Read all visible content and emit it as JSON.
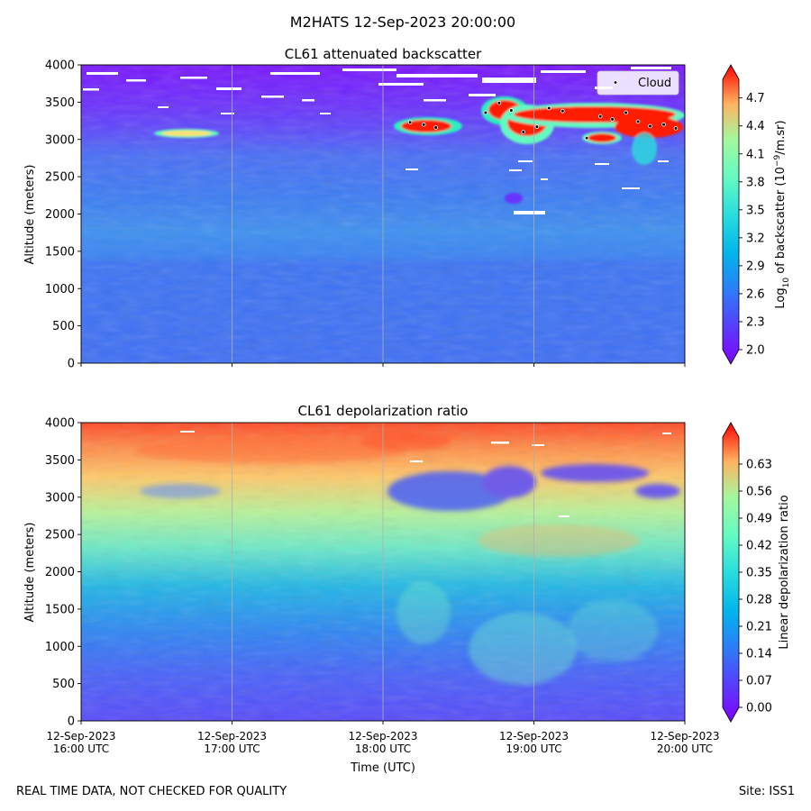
{
  "suptitle": "M2HATS 12-Sep-2023 20:00:00",
  "footer_left": "REAL TIME DATA, NOT CHECKED FOR QUALITY",
  "footer_right": "Site: ISS1",
  "x_axis": {
    "label": "Time (UTC)",
    "ticks": [
      {
        "date": "12-Sep-2023",
        "time": "16:00 UTC",
        "hour": 16
      },
      {
        "date": "12-Sep-2023",
        "time": "17:00 UTC",
        "hour": 17
      },
      {
        "date": "12-Sep-2023",
        "time": "18:00 UTC",
        "hour": 18
      },
      {
        "date": "12-Sep-2023",
        "time": "19:00 UTC",
        "hour": 19
      },
      {
        "date": "12-Sep-2023",
        "time": "20:00 UTC",
        "hour": 20
      }
    ],
    "range": [
      16,
      20
    ],
    "vertical_gridlines": true
  },
  "chart_data": [
    {
      "type": "heatmap",
      "title": "CL61 attenuated backscatter",
      "ylabel": "Altitude (meters)",
      "ylim": [
        0,
        4000
      ],
      "yticks": [
        0,
        500,
        1000,
        1500,
        2000,
        2500,
        3000,
        3500,
        4000
      ],
      "colormap": "rainbow",
      "colorbar": {
        "label_prefix": "Log",
        "label_sub": "10",
        "label_mid": " of backscatter (10",
        "label_sup": "−9",
        "label_suffix": "/m.sr)",
        "min": 2.0,
        "max": 4.9,
        "ticks": [
          "2.0",
          "2.3",
          "2.6",
          "2.9",
          "3.2",
          "3.5",
          "3.8",
          "4.1",
          "4.4",
          "4.7"
        ],
        "extend": "both"
      },
      "legend": {
        "label": "Cloud",
        "placement": "top-right"
      },
      "cloud_points": [
        {
          "hour": 18.18,
          "alt": 3230
        },
        {
          "hour": 18.27,
          "alt": 3200
        },
        {
          "hour": 18.35,
          "alt": 3160
        },
        {
          "hour": 18.68,
          "alt": 3360
        },
        {
          "hour": 18.77,
          "alt": 3490
        },
        {
          "hour": 18.85,
          "alt": 3390
        },
        {
          "hour": 18.93,
          "alt": 3100
        },
        {
          "hour": 19.02,
          "alt": 3170
        },
        {
          "hour": 19.1,
          "alt": 3420
        },
        {
          "hour": 19.19,
          "alt": 3380
        },
        {
          "hour": 19.35,
          "alt": 3020
        },
        {
          "hour": 19.44,
          "alt": 3310
        },
        {
          "hour": 19.52,
          "alt": 3270
        },
        {
          "hour": 19.61,
          "alt": 3360
        },
        {
          "hour": 19.69,
          "alt": 3240
        },
        {
          "hour": 19.77,
          "alt": 3180
        },
        {
          "hour": 19.86,
          "alt": 3200
        },
        {
          "hour": 19.94,
          "alt": 3150
        }
      ]
    },
    {
      "type": "heatmap",
      "title": "CL61 depolarization ratio",
      "ylabel": "Altitude (meters)",
      "ylim": [
        0,
        4000
      ],
      "yticks": [
        0,
        500,
        1000,
        1500,
        2000,
        2500,
        3000,
        3500,
        4000
      ],
      "colormap": "rainbow",
      "colorbar": {
        "label": "Linear depolarization ratio",
        "min": 0.0,
        "max": 0.7,
        "ticks": [
          "0.00",
          "0.07",
          "0.14",
          "0.21",
          "0.28",
          "0.35",
          "0.42",
          "0.49",
          "0.56",
          "0.63"
        ],
        "extend": "both"
      }
    }
  ]
}
